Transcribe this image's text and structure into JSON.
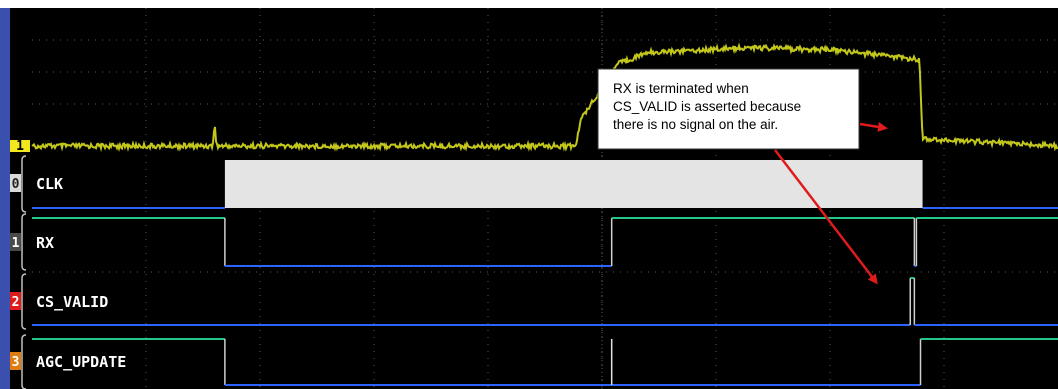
{
  "chart_data": {
    "type": "line",
    "title": "",
    "xlabel": "",
    "ylabel": "",
    "grid": true,
    "analog_trace": {
      "marker": "1",
      "color": "#cdd21e",
      "points": [
        [
          0,
          0.0
        ],
        [
          0.176,
          0.0
        ],
        [
          0.178,
          0.18
        ],
        [
          0.18,
          0.0
        ],
        [
          0.53,
          0.0
        ],
        [
          0.535,
          0.22
        ],
        [
          0.545,
          0.36
        ],
        [
          0.56,
          0.52
        ],
        [
          0.57,
          0.68
        ],
        [
          0.6,
          0.78
        ],
        [
          0.7,
          0.82
        ],
        [
          0.78,
          0.8
        ],
        [
          0.865,
          0.72
        ],
        [
          0.868,
          0.06
        ],
        [
          1.0,
          0.0
        ]
      ]
    },
    "series": [
      {
        "marker": "0",
        "name": "CLK",
        "marker_color": "#d9d9d9",
        "kind": "bus",
        "active": [
          [
            0.188,
            0.868
          ]
        ]
      },
      {
        "marker": "1",
        "name": "RX",
        "marker_color": "#4a4a4a",
        "kind": "digital",
        "initial": 1,
        "edges": [
          0.188,
          0.565,
          0.86,
          0.862
        ]
      },
      {
        "marker": "2",
        "name": "CS_VALID",
        "marker_color": "#e01b1b",
        "kind": "digital",
        "initial": 0,
        "edges": [
          0.856,
          0.86
        ]
      },
      {
        "marker": "3",
        "name": "AGC_UPDATE",
        "marker_color": "#e07b10",
        "kind": "digital",
        "initial": 1,
        "edges": [
          0.188,
          0.866
        ],
        "glitch": 0.565
      }
    ],
    "annotation": {
      "text": [
        "RX is terminated when",
        "CS_VALID is asserted because",
        "there is no signal on the air."
      ]
    },
    "colors": {
      "background": "#000000",
      "trace": "#cdd21e",
      "digital_high": "#22c78a",
      "digital_low": "#2c63ff",
      "arrow": "#e01b1b",
      "bus_fill": "#e4e4e4",
      "grid": "#5a5a5a",
      "left_bar": "#3a4fae"
    }
  }
}
